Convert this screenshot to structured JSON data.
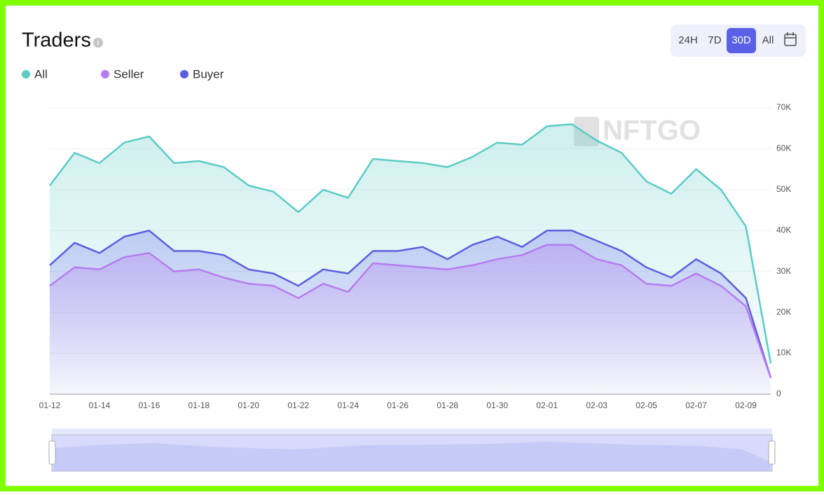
{
  "header": {
    "title": "Traders",
    "ranges": [
      {
        "label": "24H"
      },
      {
        "label": "7D"
      },
      {
        "label": "30D",
        "selected": true
      },
      {
        "label": "All"
      }
    ],
    "watermark": "NFTGO"
  },
  "chart_data": {
    "type": "area",
    "categories": [
      "01-12",
      null,
      "01-14",
      null,
      "01-16",
      null,
      "01-18",
      null,
      "01-20",
      null,
      "01-22",
      null,
      "01-24",
      null,
      "01-26",
      null,
      "01-28",
      null,
      "01-30",
      null,
      "02-01",
      null,
      "02-03",
      null,
      "02-05",
      null,
      "02-07",
      null,
      "02-09",
      null
    ],
    "series": [
      {
        "name": "All",
        "color": "#5ccbc6",
        "values": [
          51000,
          59000,
          56500,
          61500,
          63000,
          56500,
          57000,
          55500,
          51000,
          49500,
          44500,
          50000,
          48000,
          57500,
          57000,
          56500,
          55500,
          58000,
          61500,
          61000,
          65500,
          66000,
          62000,
          59000,
          52000,
          49000,
          55000,
          50000,
          41000,
          7500
        ]
      },
      {
        "name": "Seller",
        "color": "#b57cf0",
        "values": [
          26500,
          31000,
          30500,
          33500,
          34500,
          30000,
          30500,
          28500,
          27000,
          26500,
          23500,
          27000,
          25000,
          32000,
          31500,
          31000,
          30500,
          31500,
          33000,
          34000,
          36500,
          36500,
          33000,
          31500,
          27000,
          26500,
          29500,
          26500,
          21500,
          4000
        ]
      },
      {
        "name": "Buyer",
        "color": "#5a5fe0",
        "values": [
          31500,
          37000,
          34500,
          38500,
          40000,
          35000,
          35000,
          34000,
          30500,
          29500,
          26500,
          30500,
          29500,
          35000,
          35000,
          36000,
          33000,
          36500,
          38500,
          36000,
          40000,
          40000,
          37500,
          35000,
          31000,
          28500,
          33000,
          29500,
          23500,
          4000
        ]
      }
    ],
    "ylim": [
      0,
      70000
    ],
    "yticks": [
      0,
      {
        "value": 10000,
        "label": "10K"
      },
      {
        "value": 20000,
        "label": "20K"
      },
      {
        "value": 30000,
        "label": "30K"
      },
      {
        "value": 40000,
        "label": "40K"
      },
      {
        "value": 50000,
        "label": "50K"
      },
      {
        "value": 60000,
        "label": "60K"
      },
      {
        "value": 70000,
        "label": "70K"
      }
    ],
    "grid": true
  }
}
